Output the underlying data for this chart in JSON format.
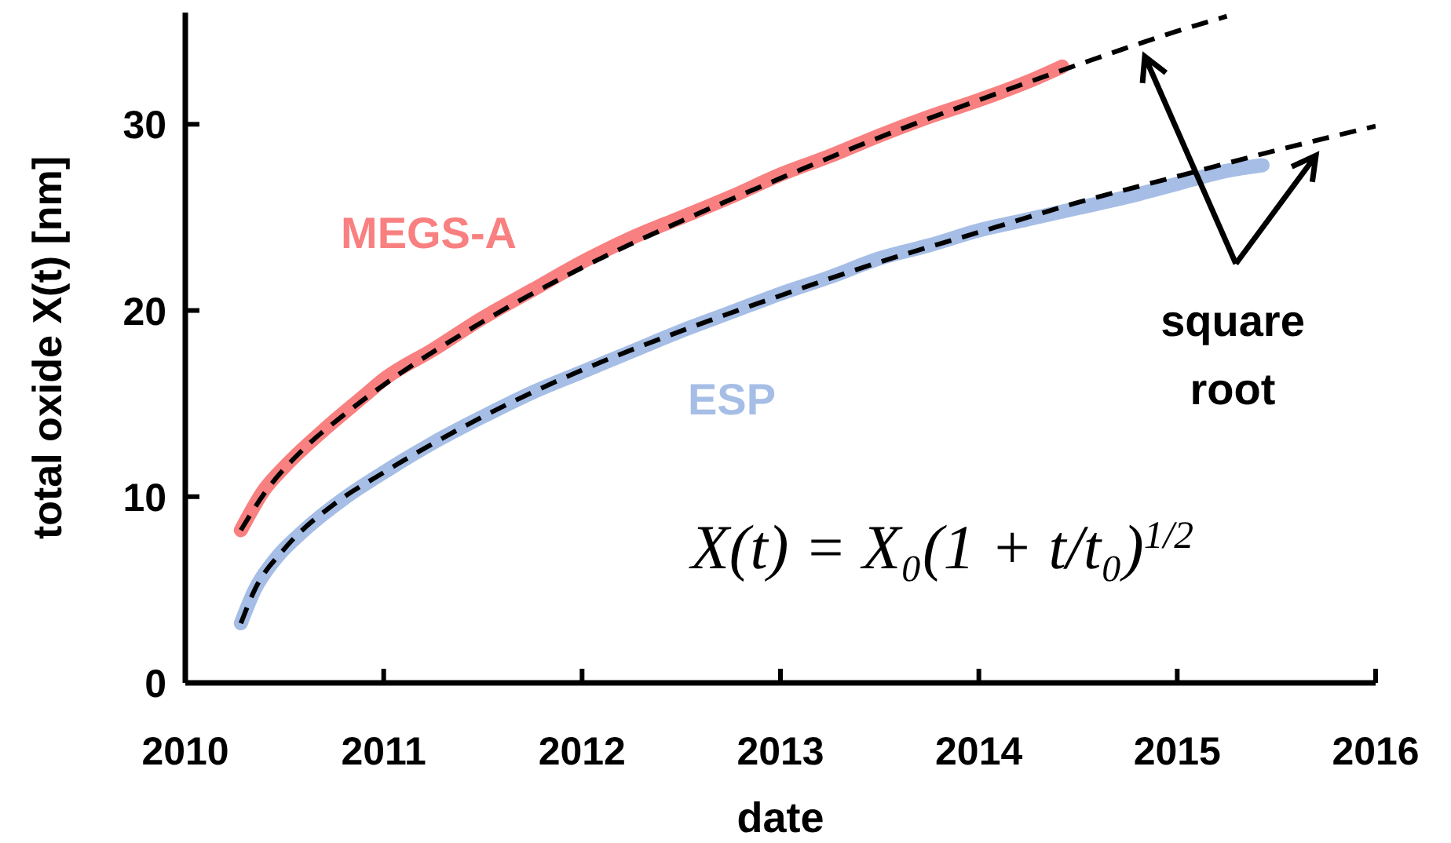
{
  "chart_data": {
    "type": "line",
    "xlabel": "date",
    "ylabel": "total oxide X(t) [nm]",
    "xlim": [
      2010,
      2016
    ],
    "xticks": [
      2010,
      2011,
      2012,
      2013,
      2014,
      2015,
      2016
    ],
    "ylim": [
      0,
      36
    ],
    "yticks": [
      0,
      10,
      20,
      30
    ],
    "marker": "none",
    "annotations": [
      "X(t) = X₀(1 + t/t₀)$^{1/2}$",
      "square root"
    ],
    "series": [
      {
        "name": "MEGS-A",
        "color": "#f98080",
        "x": [
          2010.28,
          2010.4,
          2010.5,
          2010.7,
          2010.9,
          2011.0,
          2011.25,
          2011.5,
          2011.75,
          2012.0,
          2012.25,
          2012.5,
          2012.75,
          2013.0,
          2013.25,
          2013.5,
          2013.75,
          2014.0,
          2014.25,
          2014.42
        ],
        "values": [
          8.2,
          10.4,
          11.6,
          13.6,
          15.4,
          16.3,
          17.9,
          19.6,
          21.1,
          22.6,
          23.9,
          25.0,
          26.1,
          27.3,
          28.3,
          29.4,
          30.4,
          31.3,
          32.3,
          33.1
        ]
      },
      {
        "name": "ESP",
        "color": "#a6bee6",
        "x": [
          2010.28,
          2010.35,
          2010.45,
          2010.6,
          2010.8,
          2011.0,
          2011.25,
          2011.5,
          2011.75,
          2012.0,
          2012.25,
          2012.5,
          2012.75,
          2013.0,
          2013.25,
          2013.5,
          2013.75,
          2014.0,
          2014.25,
          2014.5,
          2014.75,
          2015.0,
          2015.25,
          2015.43
        ],
        "values": [
          3.2,
          5.0,
          6.6,
          8.2,
          9.9,
          11.3,
          12.9,
          14.3,
          15.6,
          16.7,
          17.8,
          18.9,
          19.9,
          20.9,
          21.8,
          22.8,
          23.5,
          24.3,
          24.9,
          25.5,
          26.1,
          26.8,
          27.5,
          27.8
        ]
      },
      {
        "type": "line",
        "color": "#000000",
        "line_style": "dashed",
        "x": [
          2010.28,
          2010.4,
          2010.6,
          2010.8,
          2011.0,
          2011.5,
          2012.0,
          2012.5,
          2013.0,
          2013.5,
          2014.0,
          2014.5,
          2015.0,
          2015.25
        ],
        "values": [
          8.2,
          10.2,
          12.6,
          14.4,
          16.0,
          19.4,
          22.3,
          24.8,
          27.1,
          29.3,
          31.3,
          33.2,
          35.0,
          35.8
        ]
      },
      {
        "type": "line",
        "color": "#000000",
        "line_style": "dashed",
        "x": [
          2010.28,
          2010.35,
          2010.5,
          2010.75,
          2011.0,
          2011.5,
          2012.0,
          2012.5,
          2013.0,
          2013.5,
          2014.0,
          2014.5,
          2015.0,
          2015.5,
          2016.0
        ],
        "values": [
          3.2,
          5.0,
          7.2,
          9.6,
          11.3,
          14.3,
          16.8,
          18.9,
          20.8,
          22.6,
          24.2,
          25.8,
          27.2,
          28.6,
          29.9
        ]
      }
    ]
  }
}
